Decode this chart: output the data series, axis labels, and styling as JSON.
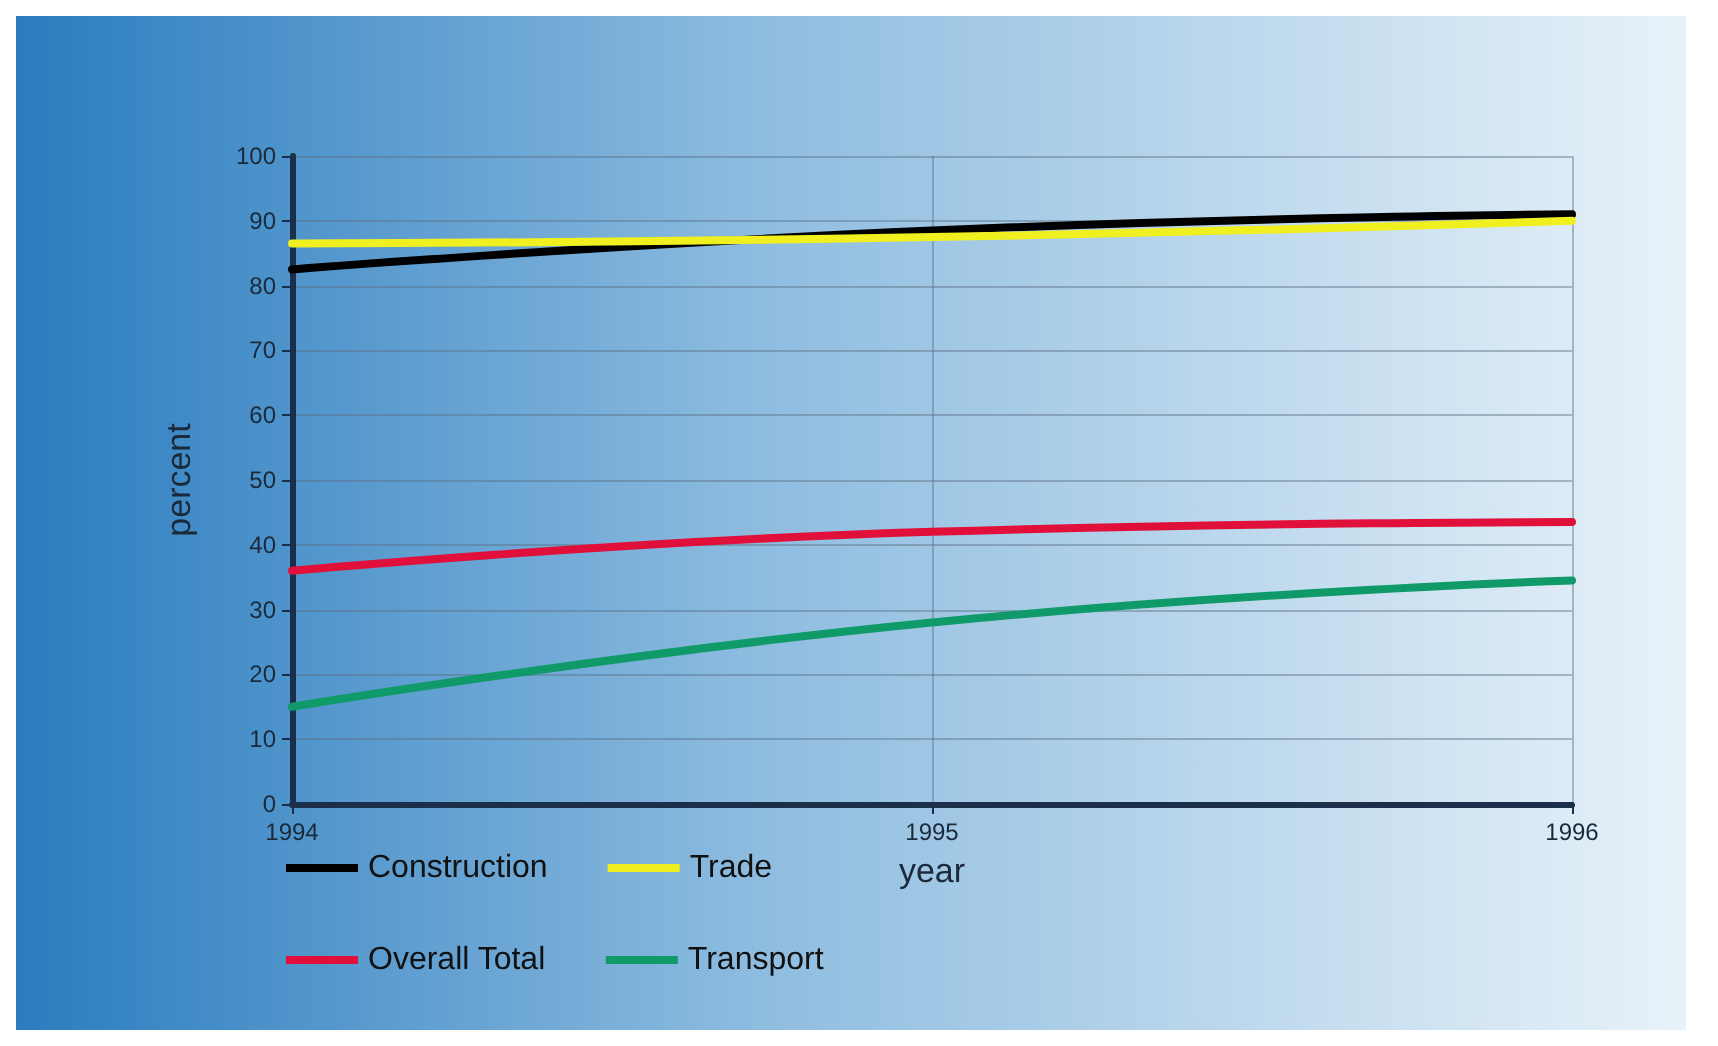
{
  "chart_data": {
    "type": "line",
    "xlabel": "year",
    "ylabel": "percent",
    "x": [
      1994,
      1995,
      1996
    ],
    "series": [
      {
        "name": "Construction",
        "color": "#000000",
        "values": [
          82.5,
          88.5,
          91
        ]
      },
      {
        "name": "Trade",
        "color": "#f0f020",
        "values": [
          86.5,
          87.5,
          90
        ]
      },
      {
        "name": "Overall Total",
        "color": "#e0103a",
        "values": [
          36,
          42,
          43.5
        ]
      },
      {
        "name": "Transport",
        "color": "#109a6a",
        "values": [
          15,
          28,
          34.5
        ]
      }
    ],
    "xlim": [
      1994,
      1996
    ],
    "xticks": [
      1994,
      1995,
      1996
    ],
    "ylim": [
      0,
      100
    ],
    "yticks": [
      0,
      10,
      20,
      30,
      40,
      50,
      60,
      70,
      80,
      90,
      100
    ],
    "grid": true,
    "legend": "bottom",
    "marker": "none",
    "line_style": "solid"
  }
}
